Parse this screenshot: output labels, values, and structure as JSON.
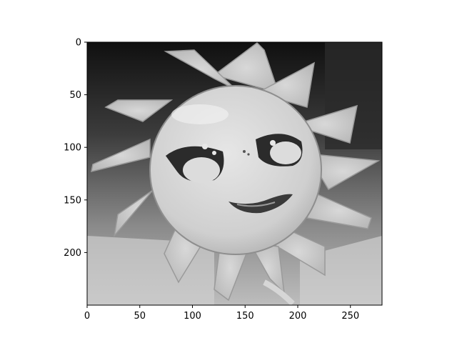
{
  "chart_data": {
    "type": "heatmap",
    "colormap": "gray",
    "image_shape": [
      250,
      280
    ],
    "xlim": [
      0,
      280
    ],
    "ylim": [
      250,
      0
    ],
    "x_ticks": [
      0,
      50,
      100,
      150,
      200,
      250
    ],
    "y_ticks": [
      0,
      50,
      100,
      150,
      200
    ],
    "image_content": "sun-shaped toy with smiling face",
    "title": "",
    "xlabel": "",
    "ylabel": ""
  }
}
